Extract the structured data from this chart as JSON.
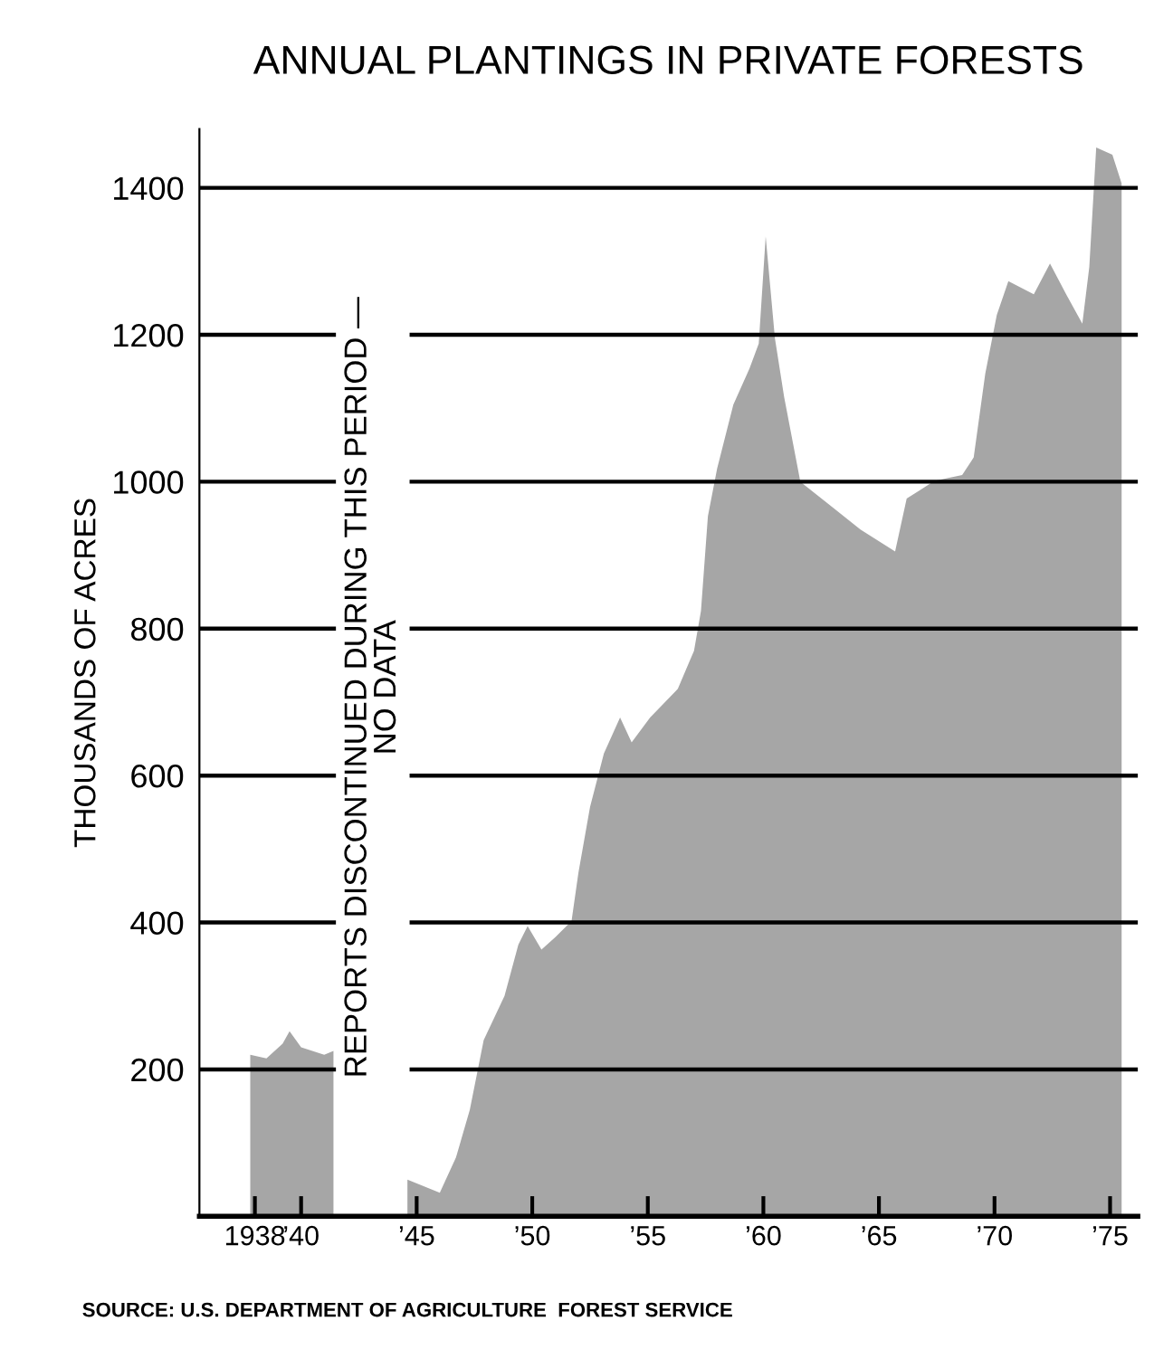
{
  "chart_data": {
    "type": "area",
    "title": "ANNUAL PLANTINGS IN PRIVATE FORESTS",
    "ylabel": "THOUSANDS OF ACRES",
    "annotations": [
      "REPORTS DISCONTINUED DURING THIS PERIOD —\nNO DATA",
      "SOURCE: U.S. DEPARTMENT OF AGRICULTURE  FOREST SERVICE"
    ],
    "series": [
      {
        "color": "#a6a6a6",
        "x": [
          1937.8,
          1938.5,
          1939.2,
          1939.5,
          1940,
          1941,
          1941.4,
          1943,
          1944.6,
          1946,
          1946.7,
          1947.3,
          1947.9,
          1948.8,
          1949.4,
          1949.8,
          1950.4,
          1951,
          1951.7,
          1952,
          1952.5,
          1953.1,
          1953.8,
          1954.3,
          1955.1,
          1956.3,
          1957,
          1957.3,
          1957.6,
          1958,
          1958.7,
          1959.4,
          1959.8,
          1960.1,
          1960.5,
          1960.9,
          1961.6,
          1962.8,
          1964.2,
          1965.7,
          1966.2,
          1967.4,
          1968.6,
          1969.1,
          1969.6,
          1970.1,
          1970.6,
          1971.7,
          1972.4,
          1973.1,
          1973.8,
          1974.1,
          1974.4,
          1975.1,
          1975.5
        ],
        "values": [
          220,
          215,
          235,
          252,
          230,
          220,
          225,
          null,
          50,
          32,
          80,
          145,
          240,
          300,
          370,
          395,
          363,
          380,
          402,
          468,
          557,
          630,
          679,
          645,
          679,
          718,
          770,
          824,
          953,
          1018,
          1105,
          1154,
          1188,
          1334,
          1195,
          1115,
          1000,
          970,
          935,
          905,
          977,
          1001,
          1009,
          1033,
          1147,
          1227,
          1273,
          1255,
          1297,
          1255,
          1215,
          1292,
          1455,
          1445,
          1406
        ]
      }
    ],
    "xlim": [
      1935.6,
      1976.2
    ],
    "ylim": [
      0,
      1480
    ],
    "xticks": [
      {
        "value": 1938,
        "label": "1938"
      },
      {
        "value": 1940,
        "label": "’40"
      },
      {
        "value": 1945,
        "label": "’45"
      },
      {
        "value": 1950,
        "label": "’50"
      },
      {
        "value": 1955,
        "label": "’55"
      },
      {
        "value": 1960,
        "label": "’60"
      },
      {
        "value": 1965,
        "label": "’65"
      },
      {
        "value": 1970,
        "label": "’70"
      },
      {
        "value": 1975,
        "label": "’75"
      }
    ],
    "yticks": [
      200,
      400,
      600,
      800,
      1000,
      1200,
      1400
    ],
    "grid": "y"
  }
}
